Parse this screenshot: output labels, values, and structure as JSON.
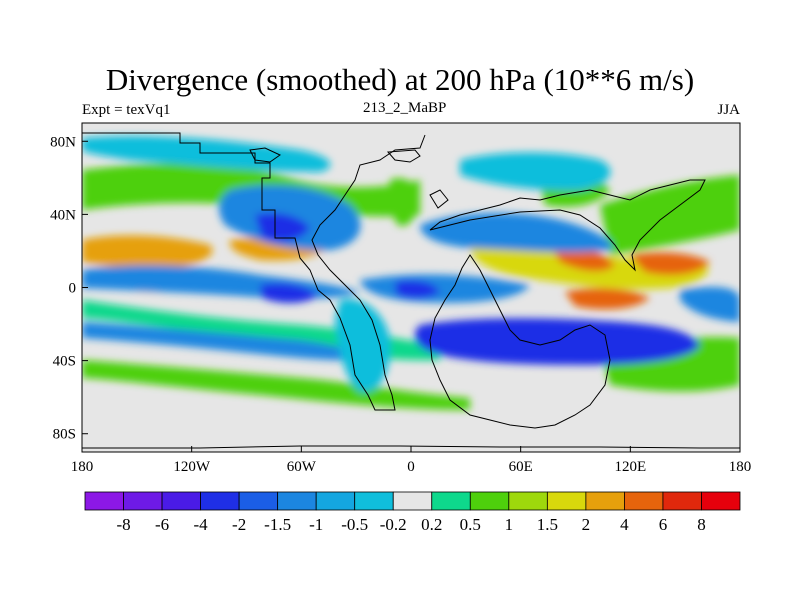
{
  "title": "Divergence (smoothed) at 200 hPa (10**6 m/s)",
  "left_subtitle": "Expt = texVq1",
  "center_subtitle": "213_2_MaBP",
  "right_subtitle": "JJA",
  "map": {
    "projection": "cylindrical-equidistant",
    "lon_range": [
      -180,
      180
    ],
    "lat_range": [
      -90,
      90
    ],
    "x_ticks": [
      {
        "value": -180,
        "label": "180"
      },
      {
        "value": -120,
        "label": "120W"
      },
      {
        "value": -60,
        "label": "60W"
      },
      {
        "value": 0,
        "label": "0"
      },
      {
        "value": 60,
        "label": "60E"
      },
      {
        "value": 120,
        "label": "120E"
      },
      {
        "value": 180,
        "label": "180"
      }
    ],
    "y_ticks": [
      {
        "value": 80,
        "label": "80N"
      },
      {
        "value": 40,
        "label": "40N"
      },
      {
        "value": 0,
        "label": "0"
      },
      {
        "value": -40,
        "label": "40S"
      },
      {
        "value": -80,
        "label": "80S"
      }
    ],
    "background_color": "#e6e6e6",
    "coastline_color": "#000000"
  },
  "colorbar": {
    "labels": [
      "-8",
      "-6",
      "-4",
      "-2",
      "-1.5",
      "-1",
      "-0.5",
      "-0.2",
      "0.2",
      "0.5",
      "1",
      "1.5",
      "2",
      "4",
      "6",
      "8"
    ],
    "colors": [
      "#8c18e6",
      "#6e1ae6",
      "#4a1be6",
      "#1f2fe6",
      "#1b5ee6",
      "#1c86e0",
      "#14a6e0",
      "#10bedc",
      "#e6e6e6",
      "#0ed88c",
      "#4ed00c",
      "#9ed80c",
      "#d8d80c",
      "#e6a00c",
      "#e6640c",
      "#e0280c",
      "#e6000c"
    ]
  }
}
